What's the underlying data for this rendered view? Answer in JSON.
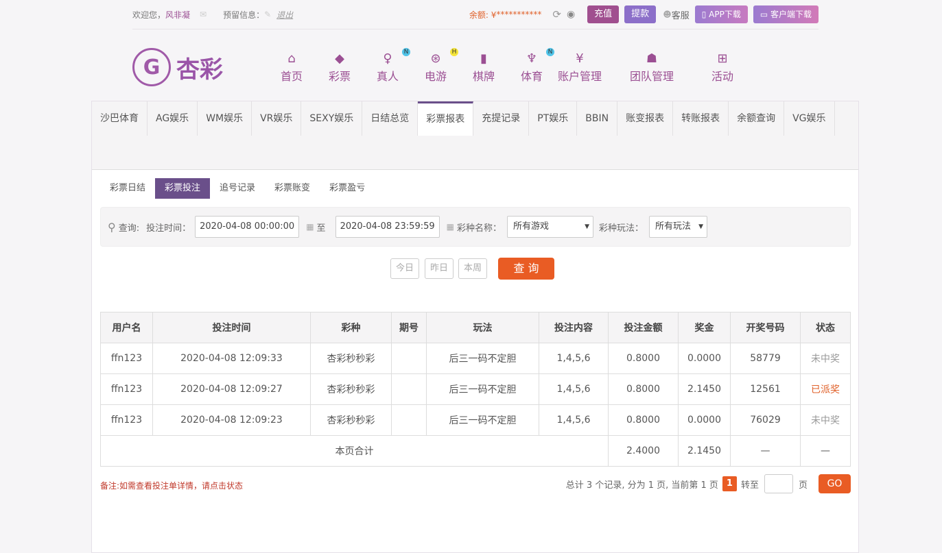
{
  "topbar": {
    "welcome": "欢迎您，",
    "username": "风非凝",
    "reserved_label": "预留信息：",
    "logout": "退出",
    "balance_label": "余额: ¥",
    "balance": "***********",
    "deposit": "充值",
    "withdraw": "提款",
    "service": "客服",
    "app_download": "APP下载",
    "client_download": "客户端下载"
  },
  "colors": {
    "accent": "#6a4f8a",
    "deposit": "#a04f8f",
    "withdraw": "#8c6fc9",
    "query": "#e95c24",
    "won": "#e0612a"
  },
  "logo": {
    "text": "杏彩"
  },
  "nav": [
    {
      "label": "首页",
      "icon": "home-icon"
    },
    {
      "label": "彩票",
      "icon": "ticket-icon"
    },
    {
      "label": "真人",
      "icon": "dealer-icon",
      "badge": "N"
    },
    {
      "label": "电游",
      "icon": "gamepad-icon",
      "badge": "H"
    },
    {
      "label": "棋牌",
      "icon": "cards-icon"
    },
    {
      "label": "体育",
      "icon": "trophy-icon",
      "badge": "N"
    },
    {
      "label": "账户管理",
      "icon": "yen-icon"
    },
    {
      "label": "团队管理",
      "icon": "team-icon"
    },
    {
      "label": "活动",
      "icon": "gift-icon"
    }
  ],
  "tabs": [
    "沙巴体育",
    "AG娱乐",
    "WM娱乐",
    "VR娱乐",
    "SEXY娱乐",
    "日结总览",
    "彩票报表",
    "充提记录",
    "PT娱乐",
    "BBIN",
    "账变报表",
    "转账报表",
    "余额查询",
    "VG娱乐"
  ],
  "subtabs": [
    "彩票日结",
    "彩票投注",
    "追号记录",
    "彩票账变",
    "彩票盈亏"
  ],
  "search": {
    "label": "查询:",
    "time_label": "投注时间：",
    "start": "2020-04-08 00:00:00",
    "to": "至",
    "end": "2020-04-08 23:59:59",
    "game_label": "彩种名称：",
    "game": "所有游戏",
    "play_label": "彩种玩法：",
    "play": "所有玩法",
    "today": "今日",
    "yesterday": "昨日",
    "week": "本周",
    "query": "查 询"
  },
  "table": {
    "headers": [
      "用户名",
      "投注时间",
      "彩种",
      "期号",
      "玩法",
      "投注内容",
      "投注金额",
      "奖金",
      "开奖号码",
      "状态"
    ],
    "rows": [
      [
        "ffn123",
        "2020-04-08 12:09:33",
        "杏彩秒秒彩",
        "",
        "后三一码不定胆",
        "1,4,5,6",
        "0.8000",
        "0.0000",
        "58779",
        "未中奖"
      ],
      [
        "ffn123",
        "2020-04-08 12:09:27",
        "杏彩秒秒彩",
        "",
        "后三一码不定胆",
        "1,4,5,6",
        "0.8000",
        "2.1450",
        "12561",
        "已派奖"
      ],
      [
        "ffn123",
        "2020-04-08 12:09:23",
        "杏彩秒秒彩",
        "",
        "后三一码不定胆",
        "1,4,5,6",
        "0.8000",
        "0.0000",
        "76029",
        "未中奖"
      ]
    ],
    "total": {
      "label": "本页合计",
      "amount": "2.4000",
      "prize": "2.1450",
      "number": "—",
      "status": "—"
    }
  },
  "footer": {
    "note": "备注:如需查看投注单详情，请点击状态",
    "summary": "总计 3 个记录, 分为 1 页, 当前第 1 页",
    "page": "1",
    "goto": "转至",
    "page_unit": "页",
    "go": "GO"
  }
}
